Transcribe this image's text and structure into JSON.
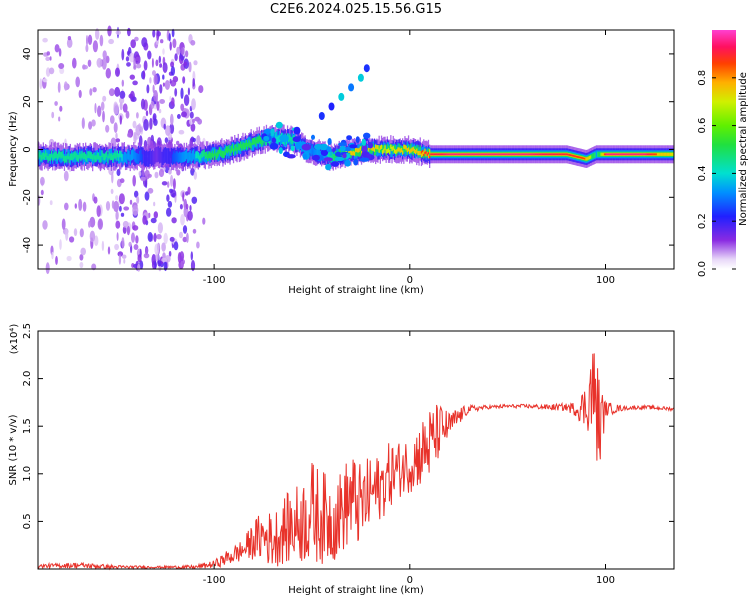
{
  "title": "C2E6.2024.025.15.56.G15",
  "chart_data": [
    {
      "type": "heatmap",
      "xlabel": "Height of straight line (km)",
      "ylabel": "Frequency (Hz)",
      "xlim": [
        -190,
        135
      ],
      "ylim": [
        -50,
        50
      ],
      "x_ticks": [
        -100,
        0,
        100
      ],
      "y_ticks": [
        40,
        20,
        0,
        -20,
        -40
      ],
      "colorbar": {
        "label": "Normalized spectral amplitude",
        "range": [
          0,
          1
        ],
        "ticks": [
          0.0,
          0.2,
          0.4,
          0.6,
          0.8
        ]
      },
      "ridge": {
        "description_points_x": [
          -190,
          -150,
          -130,
          -110,
          -100,
          -90,
          -80,
          -70,
          -60,
          -50,
          -40,
          -30,
          -20,
          -10,
          0,
          10,
          20,
          40,
          60,
          80,
          90,
          95,
          100,
          120,
          135
        ],
        "frequency_hz": [
          -3,
          -3,
          -3,
          -3,
          -2,
          0,
          3,
          5,
          4,
          -1,
          -3,
          -1,
          0,
          0,
          0,
          -2,
          -2,
          -2,
          -2,
          -2,
          -4,
          -2,
          -2,
          -2,
          -2
        ],
        "peak_amplitude": [
          0.45,
          0.45,
          0.15,
          0.4,
          0.55,
          0.6,
          0.55,
          0.4,
          0.45,
          0.3,
          0.45,
          0.8,
          0.75,
          0.7,
          0.8,
          0.9,
          0.95,
          0.95,
          0.95,
          0.9,
          0.85,
          0.4,
          0.95,
          0.95,
          0.7
        ]
      },
      "branch": {
        "x": [
          -45,
          -40,
          -35,
          -30,
          -25,
          -22
        ],
        "frequency_hz": [
          14,
          18,
          22,
          26,
          30,
          34
        ],
        "amplitude": 0.35
      },
      "noise_region_x": [
        -190,
        -105
      ]
    },
    {
      "type": "line",
      "xlabel": "Height of straight line (km)",
      "ylabel": "SNR (10 * v/v)",
      "y_exponent_label": "(x10⁴)",
      "xlim": [
        -190,
        135
      ],
      "ylim": [
        0,
        2.5
      ],
      "x_ticks": [
        -100,
        0,
        100
      ],
      "y_ticks": [
        0.5,
        1.0,
        1.5,
        2.0,
        2.5
      ],
      "series": [
        {
          "color": "#e8322a",
          "x": [
            -190,
            -170,
            -150,
            -130,
            -110,
            -100,
            -90,
            -85,
            -80,
            -75,
            -70,
            -65,
            -60,
            -55,
            -50,
            -45,
            -40,
            -35,
            -30,
            -25,
            -20,
            -15,
            -10,
            -5,
            0,
            5,
            10,
            15,
            20,
            25,
            30,
            40,
            50,
            60,
            70,
            80,
            85,
            90,
            93,
            95,
            97,
            100,
            110,
            120,
            135
          ],
          "y": [
            0.03,
            0.04,
            0.02,
            0.02,
            0.02,
            0.05,
            0.15,
            0.2,
            0.3,
            0.35,
            0.3,
            0.4,
            0.45,
            0.5,
            0.6,
            0.55,
            0.5,
            0.6,
            0.75,
            0.65,
            0.8,
            0.85,
            1.0,
            1.05,
            1.1,
            1.2,
            1.3,
            1.45,
            1.5,
            1.6,
            1.68,
            1.7,
            1.71,
            1.71,
            1.7,
            1.7,
            1.68,
            1.7,
            1.9,
            1.75,
            1.5,
            1.68,
            1.69,
            1.7,
            1.68
          ],
          "noise_amplitude": [
            0.02,
            0.03,
            0.02,
            0.01,
            0.02,
            0.04,
            0.1,
            0.12,
            0.2,
            0.28,
            0.3,
            0.35,
            0.4,
            0.45,
            0.55,
            0.5,
            0.45,
            0.45,
            0.5,
            0.45,
            0.4,
            0.35,
            0.35,
            0.3,
            0.3,
            0.35,
            0.4,
            0.3,
            0.15,
            0.1,
            0.04,
            0.02,
            0.02,
            0.02,
            0.03,
            0.04,
            0.08,
            0.25,
            0.5,
            0.6,
            0.5,
            0.08,
            0.02,
            0.02,
            0.02
          ]
        }
      ]
    }
  ]
}
